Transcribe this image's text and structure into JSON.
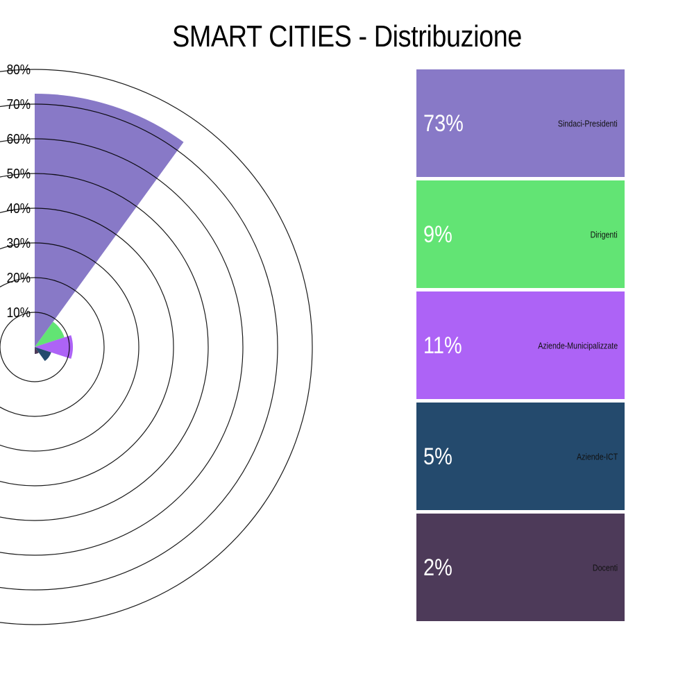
{
  "chart_data": {
    "type": "polar-area",
    "title": "SMART CITIES - Distribuzione",
    "radial_axis": {
      "min": 0,
      "max": 80,
      "ticks": [
        "10%",
        "20%",
        "30%",
        "40%",
        "50%",
        "60%",
        "70%",
        "80%"
      ],
      "tick_values": [
        10,
        20,
        30,
        40,
        50,
        60,
        70,
        80
      ]
    },
    "categories": [
      "Sindaci-Presidenti",
      "Dirigenti",
      "Aziende-Municipalizzate",
      "Aziende-ICT",
      "Docenti"
    ],
    "values": [
      73,
      9,
      11,
      5,
      2
    ],
    "value_labels": [
      "73%",
      "9%",
      "11%",
      "5%",
      "2%"
    ],
    "colors": [
      "#8879c7",
      "#62e474",
      "#ad63f6",
      "#244a6d",
      "#4d3a59"
    ],
    "grid": true,
    "legend_position": "right"
  }
}
